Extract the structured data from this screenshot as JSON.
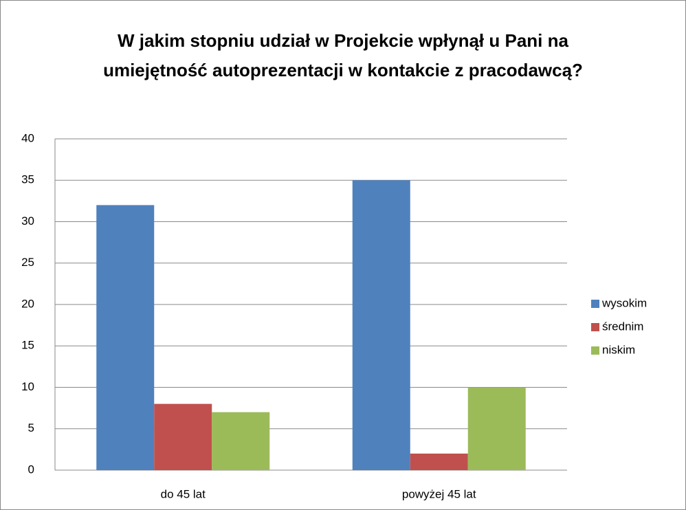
{
  "chart_data": {
    "type": "bar",
    "title": "W jakim stopniu udział w Projekcie wpłynął u Pani na umiejętność autoprezentacji w kontakcie z pracodawcą?",
    "categories": [
      "do 45 lat",
      "powyżej 45 lat"
    ],
    "series": [
      {
        "name": "wysokim",
        "color": "#4f81bd",
        "values": [
          32,
          35
        ]
      },
      {
        "name": "średnim",
        "color": "#c0504d",
        "values": [
          8,
          2
        ]
      },
      {
        "name": "niskim",
        "color": "#9bbb59",
        "values": [
          7,
          10
        ]
      }
    ],
    "ylim": [
      0,
      40
    ],
    "yticks": [
      0,
      5,
      10,
      15,
      20,
      25,
      30,
      35,
      40
    ],
    "grid": true,
    "legend": "right"
  }
}
